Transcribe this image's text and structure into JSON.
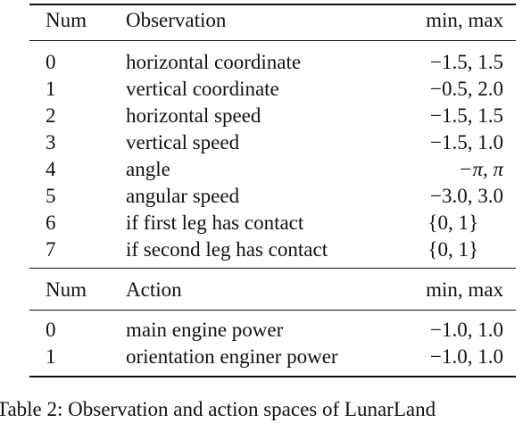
{
  "observation_table": {
    "header": {
      "num": "Num",
      "label": "Observation",
      "range": "min, max"
    },
    "rows": [
      {
        "num": "0",
        "label": "horizontal coordinate",
        "range": "−1.5, 1.5"
      },
      {
        "num": "1",
        "label": "vertical coordinate",
        "range": "−0.5, 2.0"
      },
      {
        "num": "2",
        "label": "horizontal speed",
        "range": "−1.5, 1.5"
      },
      {
        "num": "3",
        "label": "vertical speed",
        "range": "−1.5, 1.0"
      },
      {
        "num": "4",
        "label": "angle",
        "range": "−π, π"
      },
      {
        "num": "5",
        "label": "angular speed",
        "range": "−3.0, 3.0"
      },
      {
        "num": "6",
        "label": "if first leg has contact",
        "range": "{0, 1}"
      },
      {
        "num": "7",
        "label": "if second leg has contact",
        "range": "{0, 1}"
      }
    ]
  },
  "action_table": {
    "header": {
      "num": "Num",
      "label": "Action",
      "range": "min, max"
    },
    "rows": [
      {
        "num": "0",
        "label": "main engine power",
        "range": "−1.0, 1.0"
      },
      {
        "num": "1",
        "label": "orientation enginer power",
        "range": "−1.0, 1.0"
      }
    ]
  },
  "caption": {
    "text": "Table 2: Observation and action spaces of LunarLand"
  }
}
